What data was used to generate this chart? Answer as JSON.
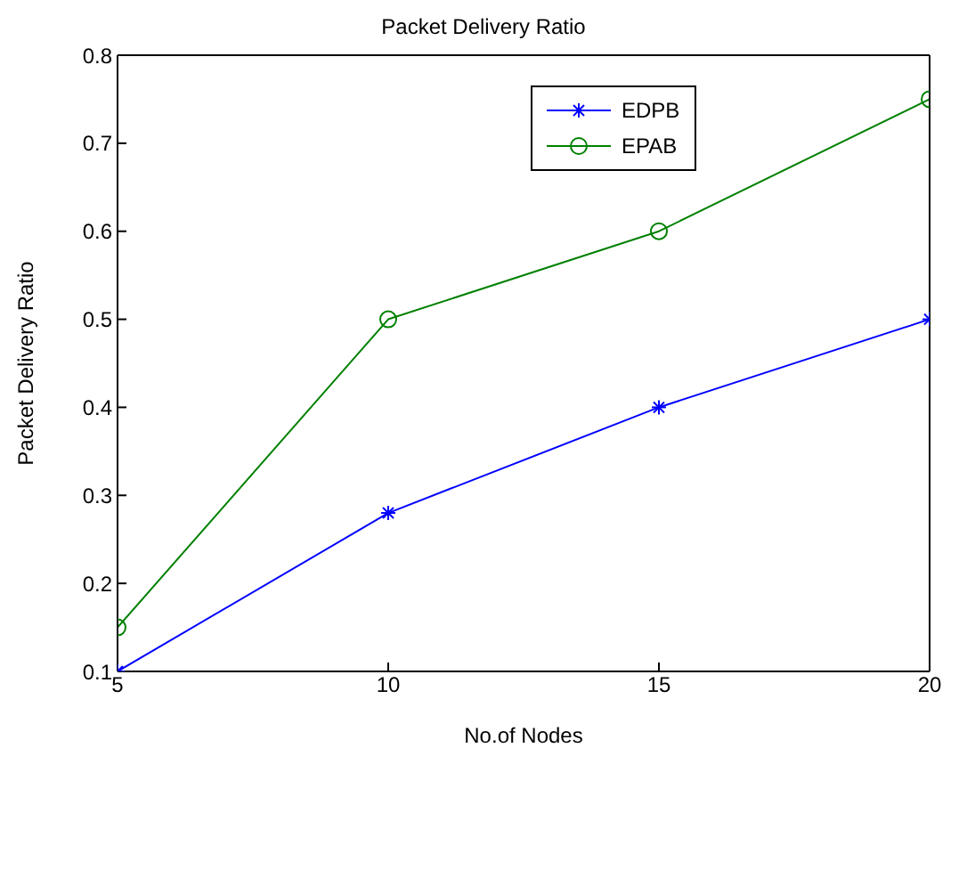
{
  "chart_data": {
    "type": "line",
    "title": "Packet Delivery Ratio",
    "xlabel": "No.of Nodes",
    "ylabel": "Packet Delivery Ratio",
    "x": [
      5,
      10,
      15,
      20
    ],
    "series": [
      {
        "name": "EDPB",
        "color": "#0000ff",
        "marker": "cross",
        "values": [
          0.1,
          0.28,
          0.4,
          0.5
        ]
      },
      {
        "name": "EPAB",
        "color": "#008000",
        "marker": "circle",
        "values": [
          0.15,
          0.5,
          0.6,
          0.75
        ]
      }
    ],
    "xlim": [
      5,
      20
    ],
    "xticks": [
      5,
      10,
      15,
      20
    ],
    "ylim": [
      0.1,
      0.8
    ],
    "yticks": [
      0.1,
      0.2,
      0.3,
      0.4,
      0.5,
      0.6,
      0.7,
      0.8
    ],
    "grid": false,
    "legend": "top right",
    "line_style": "solid"
  }
}
